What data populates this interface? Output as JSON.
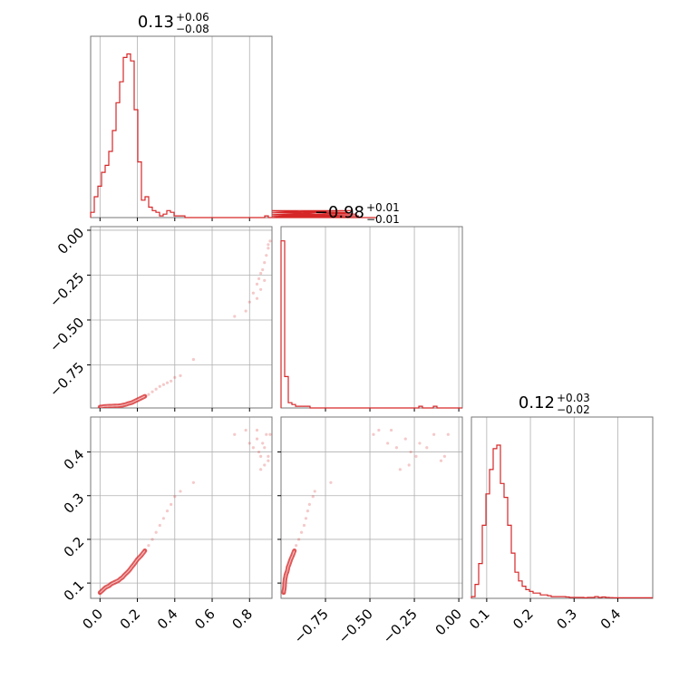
{
  "chart_data": {
    "type": "corner",
    "color": "#d62728",
    "panels": [
      {
        "id": "p00",
        "kind": "hist",
        "x_param": 0,
        "title": {
          "value": "0.13",
          "plus": "+0.06",
          "minus": "−0.08"
        },
        "xlim": [
          -0.05,
          0.92
        ],
        "x_ticks": [
          0.0,
          0.2,
          0.4,
          0.6,
          0.8
        ],
        "bin_width": 0.0194,
        "heights": [
          0.03,
          0.12,
          0.18,
          0.26,
          0.3,
          0.38,
          0.5,
          0.66,
          0.78,
          0.92,
          0.94,
          0.9,
          0.62,
          0.32,
          0.1,
          0.12,
          0.06,
          0.04,
          0.03,
          0.01,
          0.02,
          0.04,
          0.03,
          0.01,
          0.01,
          0.01,
          0.0,
          0.0,
          0.0,
          0.0,
          0.0,
          0.0,
          0.0,
          0.0,
          0.0,
          0.0,
          0.0,
          0.0,
          0.0,
          0.0,
          0.0,
          0.0,
          0.0,
          0.0,
          0.0,
          0.0,
          0.0,
          0.0,
          0.01,
          0.0,
          0.0,
          0.0,
          0.0,
          0.0,
          0.0,
          0.0,
          0.0,
          0.0,
          0.0,
          0.0,
          0.0,
          0.02,
          0.01,
          0.03,
          0.02,
          0.01,
          0.0,
          0.0,
          0.0,
          0.0,
          0.0,
          0.03,
          0.04,
          0.02,
          0.01,
          0.0,
          0.0,
          0.0,
          0.0,
          0.0
        ],
        "ylim": [
          0,
          1.0
        ]
      },
      {
        "id": "p11",
        "kind": "hist",
        "x_param": 1,
        "title": {
          "value": "−0.98",
          "plus": "+0.01",
          "minus": "−0.01"
        },
        "xlim": [
          -1.0,
          0.02
        ],
        "x_ticks": [
          -0.75,
          -0.5,
          -0.25,
          0.0
        ],
        "bin_width": 0.0204,
        "heights": [
          0.96,
          0.18,
          0.03,
          0.02,
          0.01,
          0.01,
          0.01,
          0.01,
          0.0,
          0.0,
          0.0,
          0.0,
          0.0,
          0.0,
          0.0,
          0.0,
          0.0,
          0.0,
          0.0,
          0.0,
          0.0,
          0.0,
          0.0,
          0.0,
          0.0,
          0.0,
          0.0,
          0.0,
          0.0,
          0.0,
          0.0,
          0.0,
          0.0,
          0.0,
          0.0,
          0.0,
          0.0,
          0.0,
          0.01,
          0.0,
          0.0,
          0.0,
          0.01,
          0.0,
          0.0,
          0.0,
          0.0,
          0.0,
          0.0,
          0.0
        ],
        "ylim": [
          0,
          1.0
        ]
      },
      {
        "id": "p22",
        "kind": "hist",
        "x_param": 2,
        "title": {
          "value": "0.12",
          "plus": "+0.03",
          "minus": "−0.02"
        },
        "xlim": [
          0.065,
          0.48
        ],
        "x_ticks": [
          0.1,
          0.2,
          0.3,
          0.4
        ],
        "bin_width": 0.0083,
        "heights": [
          0.01,
          0.08,
          0.2,
          0.42,
          0.6,
          0.74,
          0.86,
          0.88,
          0.66,
          0.58,
          0.42,
          0.26,
          0.15,
          0.1,
          0.07,
          0.05,
          0.04,
          0.03,
          0.03,
          0.02,
          0.02,
          0.015,
          0.01,
          0.01,
          0.01,
          0.01,
          0.008,
          0.005,
          0.005,
          0.005,
          0.005,
          0.003,
          0.005,
          0.005,
          0.01,
          0.005,
          0.008,
          0.005,
          0.004,
          0.003,
          0.003,
          0.003,
          0.003,
          0.003,
          0.003,
          0.003,
          0.003,
          0.003,
          0.003,
          0.003
        ],
        "ylim": [
          0,
          1.0
        ]
      },
      {
        "id": "p10",
        "kind": "scatter",
        "x_param": 0,
        "y_param": 1,
        "xlim": [
          -0.05,
          0.92
        ],
        "ylim": [
          -0.99,
          0.02
        ],
        "x_ticks": [
          0.0,
          0.2,
          0.4,
          0.6,
          0.8
        ],
        "y_ticks": [
          0.0,
          -0.25,
          -0.5,
          -0.75
        ],
        "y_tick_labels": [
          "0.00",
          "−0.25",
          "−0.50",
          "−0.75"
        ]
      },
      {
        "id": "p20",
        "kind": "scatter",
        "x_param": 0,
        "y_param": 2,
        "xlim": [
          -0.05,
          0.92
        ],
        "ylim": [
          0.065,
          0.48
        ],
        "x_ticks": [
          0.0,
          0.2,
          0.4,
          0.6,
          0.8
        ],
        "x_tick_labels": [
          "0.0",
          "0.2",
          "0.4",
          "0.6",
          "0.8"
        ],
        "y_ticks": [
          0.1,
          0.2,
          0.3,
          0.4
        ],
        "y_tick_labels": [
          "0.1",
          "0.2",
          "0.3",
          "0.4"
        ]
      },
      {
        "id": "p21",
        "kind": "scatter",
        "x_param": 1,
        "y_param": 2,
        "xlim": [
          -1.0,
          0.02
        ],
        "ylim": [
          0.065,
          0.48
        ],
        "x_ticks": [
          -0.75,
          -0.5,
          -0.25,
          0.0
        ],
        "x_tick_labels": [
          "−0.75",
          "−0.50",
          "−0.25",
          "0.00"
        ],
        "y_ticks": [
          0.1,
          0.2,
          0.3,
          0.4
        ]
      }
    ],
    "bottom_x_tick_labels_p22": [
      "0.1",
      "0.2",
      "0.3",
      "0.4"
    ],
    "samples": {
      "p0": [
        0.0,
        0.01,
        0.02,
        0.03,
        0.05,
        0.06,
        0.08,
        0.1,
        0.11,
        0.12,
        0.13,
        0.14,
        0.15,
        0.16,
        0.17,
        0.18,
        0.19,
        0.2,
        0.22,
        0.24,
        0.26,
        0.28,
        0.3,
        0.32,
        0.34,
        0.36,
        0.38,
        0.4,
        0.43,
        0.5,
        0.72,
        0.78,
        0.8,
        0.82,
        0.84,
        0.85,
        0.86,
        0.87,
        0.88,
        0.89,
        0.9,
        0.91,
        0.88,
        0.86,
        0.84,
        0.9
      ],
      "p1": [
        -0.985,
        -0.984,
        -0.982,
        -0.981,
        -0.98,
        -0.98,
        -0.979,
        -0.978,
        -0.977,
        -0.975,
        -0.973,
        -0.97,
        -0.966,
        -0.963,
        -0.96,
        -0.955,
        -0.95,
        -0.945,
        -0.935,
        -0.925,
        -0.915,
        -0.9,
        -0.885,
        -0.87,
        -0.86,
        -0.85,
        -0.84,
        -0.82,
        -0.81,
        -0.72,
        -0.48,
        -0.45,
        -0.4,
        -0.35,
        -0.3,
        -0.27,
        -0.24,
        -0.22,
        -0.18,
        -0.14,
        -0.1,
        -0.06,
        -0.28,
        -0.33,
        -0.38,
        -0.08
      ],
      "p2": [
        0.078,
        0.082,
        0.086,
        0.09,
        0.094,
        0.098,
        0.102,
        0.106,
        0.11,
        0.113,
        0.118,
        0.122,
        0.126,
        0.131,
        0.137,
        0.142,
        0.148,
        0.154,
        0.163,
        0.174,
        0.186,
        0.2,
        0.216,
        0.232,
        0.248,
        0.265,
        0.28,
        0.298,
        0.31,
        0.33,
        0.44,
        0.45,
        0.42,
        0.41,
        0.43,
        0.4,
        0.39,
        0.42,
        0.41,
        0.44,
        0.38,
        0.44,
        0.37,
        0.36,
        0.45,
        0.39
      ]
    },
    "contour_core": [
      [
        0.1,
        0.14
      ],
      [
        0.15,
        0.19
      ],
      [
        0.2,
        0.25
      ]
    ]
  }
}
